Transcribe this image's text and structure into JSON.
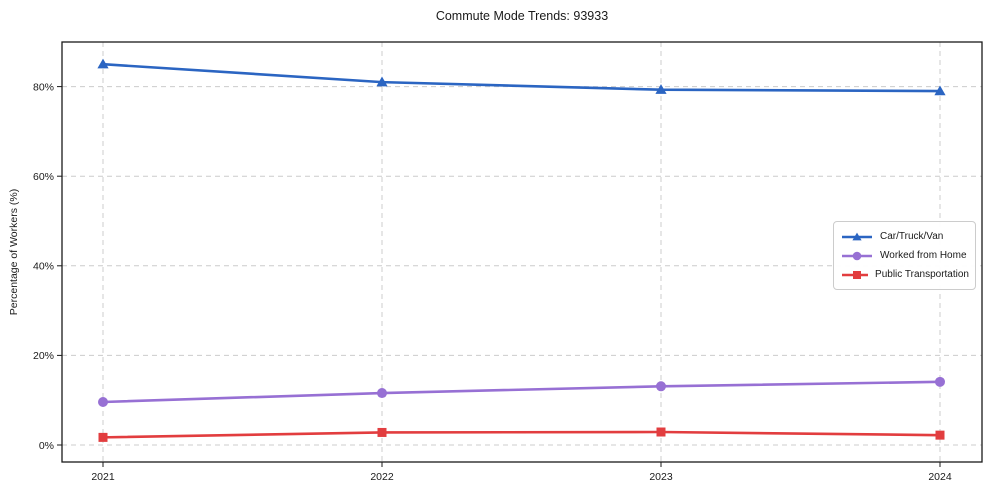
{
  "chart_data": {
    "type": "line",
    "title": "Commute Mode Trends: 93933",
    "xlabel": "",
    "ylabel": "Percentage of Workers (%)",
    "x": [
      2021,
      2022,
      2023,
      2024
    ],
    "x_tick_labels": [
      "2021",
      "2022",
      "2023",
      "2024"
    ],
    "y_ticks": [
      0,
      20,
      40,
      60,
      80
    ],
    "y_tick_labels": [
      "0%",
      "20%",
      "40%",
      "60%",
      "80%"
    ],
    "ylim": [
      -3.5,
      90
    ],
    "grid": true,
    "grid_style": "dashed",
    "legend_position": "center-right",
    "series": [
      {
        "name": "Car/Truck/Van",
        "color": "#2b65c2",
        "marker": "triangle",
        "values": [
          85.0,
          81.0,
          79.3,
          79.0
        ]
      },
      {
        "name": "Worked from Home",
        "color": "#9770d4",
        "marker": "circle",
        "values": [
          9.6,
          11.6,
          13.1,
          14.1
        ]
      },
      {
        "name": "Public Transportation",
        "color": "#e23d3f",
        "marker": "square",
        "values": [
          1.7,
          2.8,
          2.9,
          2.2
        ]
      }
    ],
    "colors": {
      "grid": "#cccccc",
      "spine": "#1a1a1a",
      "text": "#1a1a1a",
      "background": "#ffffff"
    }
  }
}
